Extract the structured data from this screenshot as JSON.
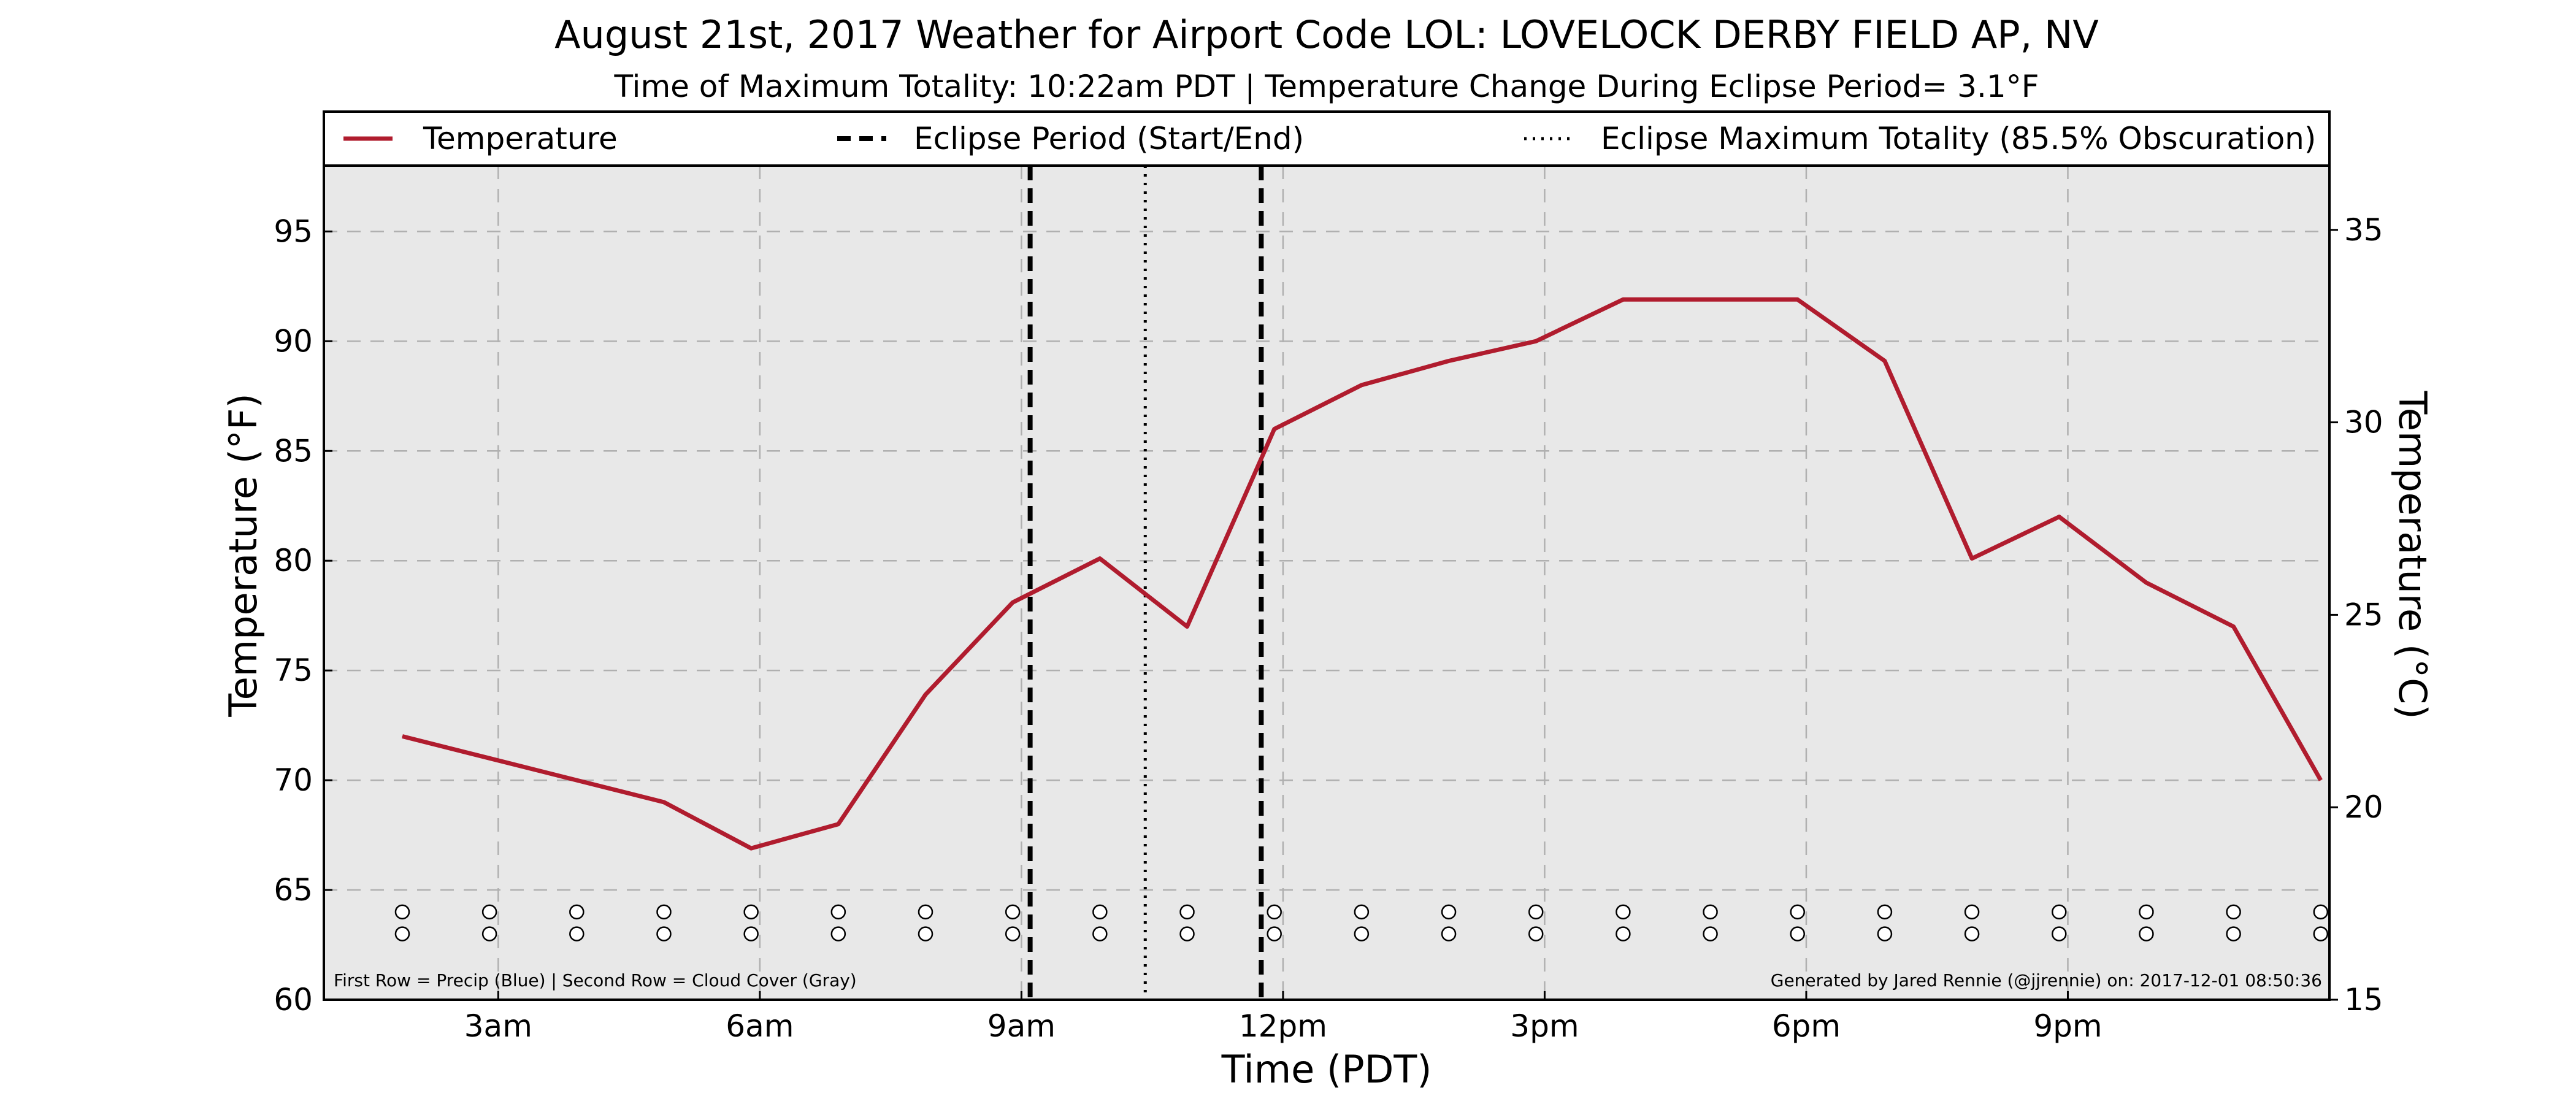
{
  "chart_data": {
    "type": "line",
    "title": "August 21st, 2017 Weather for Airport Code LOL: LOVELOCK  DERBY FIELD AP, NV",
    "subtitle": "Time of Maximum Totality: 10:22am PDT | Temperature Change During Eclipse Period= 3.1°F",
    "xlabel": "Time (PDT)",
    "ylabel": "Temperature (°F)",
    "ylabel_right": "Temperature (°C)",
    "xlim": [
      1.0,
      24.0
    ],
    "ylim": [
      60,
      98
    ],
    "ylim_right": [
      15,
      36.67
    ],
    "grid": true,
    "legend_position": "top",
    "x_ticks": [
      {
        "value": 3,
        "label": "3am"
      },
      {
        "value": 6,
        "label": "6am"
      },
      {
        "value": 9,
        "label": "9am"
      },
      {
        "value": 12,
        "label": "12pm"
      },
      {
        "value": 15,
        "label": "3pm"
      },
      {
        "value": 18,
        "label": "6pm"
      },
      {
        "value": 21,
        "label": "9pm"
      }
    ],
    "y_ticks": [
      60,
      65,
      70,
      75,
      80,
      85,
      90,
      95
    ],
    "y_ticks_right": [
      15,
      20,
      25,
      30,
      35
    ],
    "series": [
      {
        "name": "Temperature",
        "color": "#b01c2e",
        "x": [
          1.9,
          2.9,
          3.9,
          4.9,
          5.9,
          6.9,
          7.9,
          8.9,
          9.9,
          10.9,
          11.9,
          12.9,
          13.9,
          14.9,
          15.9,
          16.9,
          17.9,
          18.9,
          19.9,
          20.9,
          21.9,
          22.9,
          23.9
        ],
        "y": [
          72,
          71,
          70,
          69,
          66.9,
          68,
          73.9,
          78.1,
          80.1,
          77,
          86,
          88,
          89.1,
          90,
          91.9,
          91.9,
          91.9,
          89.1,
          80.1,
          82,
          79,
          77,
          70
        ]
      }
    ],
    "eclipse_start": 9.1,
    "eclipse_end": 11.75,
    "eclipse_max": 10.42,
    "legend": [
      {
        "label": "Temperature",
        "style": "solid",
        "color": "#b01c2e"
      },
      {
        "label": "Eclipse Period (Start/End)",
        "style": "dashed",
        "color": "#000000"
      },
      {
        "label": "Eclipse Maximum Totality (85.5% Obscuration)",
        "style": "dotted",
        "color": "#000000"
      }
    ],
    "marker_rows": {
      "precip_y": 64,
      "cloud_y": 63,
      "x": [
        1.9,
        2.9,
        3.9,
        4.9,
        5.9,
        6.9,
        7.9,
        8.9,
        9.9,
        10.9,
        11.9,
        12.9,
        13.9,
        14.9,
        15.9,
        16.9,
        17.9,
        18.9,
        19.9,
        20.9,
        21.9,
        22.9,
        23.9
      ]
    },
    "annotations": {
      "left": "First Row = Precip (Blue) | Second Row = Cloud Cover (Gray)",
      "right": "Generated by Jared Rennie (@jjrennie) on: 2017-12-01 08:50:36"
    },
    "colors": {
      "plot_background": "#e8e8e8",
      "grid": "#b0b0b0",
      "temperature": "#b01c2e"
    }
  }
}
